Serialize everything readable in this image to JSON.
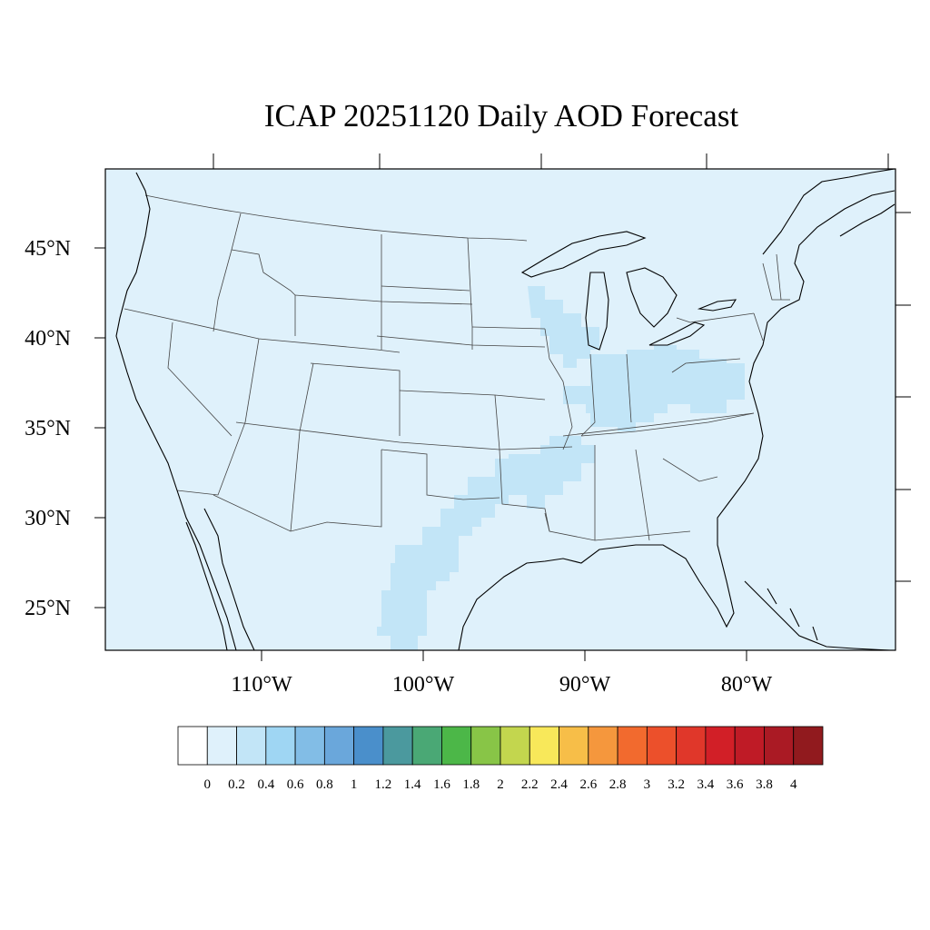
{
  "title": "ICAP 20251120 Daily AOD Forecast",
  "map": {
    "projection": "Lambert conformal",
    "region": "Continental United States",
    "extent": {
      "lon": [
        -120,
        -71
      ],
      "lat": [
        23,
        49
      ]
    },
    "colors": {
      "background": "#dff1fb",
      "aod_0_2_0_4": "#c2e5f7",
      "coast": "#000000",
      "state_lines": "#444444"
    }
  },
  "axes": {
    "lat_labels": [
      "45°N",
      "40°N",
      "35°N",
      "30°N",
      "25°N"
    ],
    "lon_labels": [
      "110°W",
      "100°W",
      "90°W",
      "80°W"
    ]
  },
  "colorbar": {
    "colors": [
      "#ffffff",
      "#dff1fb",
      "#c2e5f7",
      "#9fd6f3",
      "#82bde6",
      "#6aa7db",
      "#4a8fcb",
      "#4b999e",
      "#4aa875",
      "#4cb748",
      "#88c547",
      "#c3d64e",
      "#f8e85a",
      "#f7be48",
      "#f5973d",
      "#f26a2e",
      "#ec502b",
      "#e0372a",
      "#d21f27",
      "#bf1b26",
      "#aa1a24",
      "#911a1e"
    ],
    "labels": [
      "0",
      "0.2",
      "0.4",
      "0.6",
      "0.8",
      "1",
      "1.2",
      "1.4",
      "1.6",
      "1.8",
      "2",
      "2.2",
      "2.4",
      "2.6",
      "2.8",
      "3",
      "3.2",
      "3.4",
      "3.6",
      "3.8",
      "4"
    ]
  },
  "chart_data": {
    "type": "heatmap",
    "title": "ICAP 20251120 Daily AOD Forecast",
    "variable": "Aerosol Optical Depth",
    "levels": [
      0,
      0.2,
      0.4,
      0.6,
      0.8,
      1,
      1.2,
      1.4,
      1.6,
      1.8,
      2,
      2.2,
      2.4,
      2.6,
      2.8,
      3,
      3.2,
      3.4,
      3.6,
      3.8,
      4
    ],
    "background_aod_range": [
      0,
      0.2
    ],
    "regions_aod_0_2_to_0_4": [
      "Wisconsin / northern Illinois",
      "Ohio Valley (Indiana, Ohio, Kentucky)",
      "Virginia / Maryland",
      "Arkansas / Tennessee",
      "eastern Texas"
    ]
  }
}
